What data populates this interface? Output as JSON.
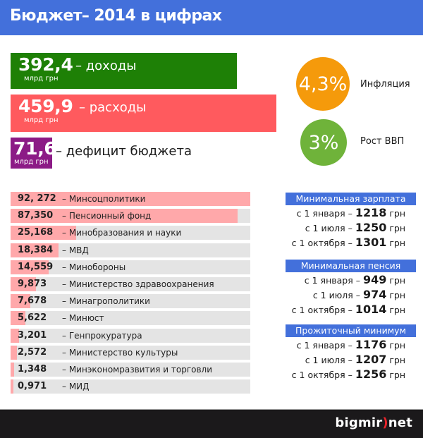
{
  "header": {
    "title": "Бюджет– 2014 в цифрах"
  },
  "summary": {
    "income": {
      "value": "392,4",
      "unit": "млрд грн",
      "label": "– доходы",
      "color": "#1e8006"
    },
    "expense": {
      "value": "459,9",
      "unit": "млрд грн",
      "label": "– расходы",
      "color": "#ff5a5e"
    },
    "deficit": {
      "value": "71,6",
      "unit": "млрд грн",
      "label": "– дефицит бюджета",
      "color": "#8c1b86"
    }
  },
  "indicators": {
    "inflation": {
      "value": "4,3%",
      "label": "Инфляция",
      "color": "#f59a0b"
    },
    "gdp": {
      "value": "3%",
      "label": "Рост ВВП",
      "color": "#6fb33a"
    }
  },
  "bars": {
    "items": [
      {
        "value": "92, 272",
        "label": "– Минсоцполитики"
      },
      {
        "value": "87,350",
        "label": "– Пенсионный фонд"
      },
      {
        "value": "25,168",
        "label": "– Минобразования и науки"
      },
      {
        "value": "18,384",
        "label": "– МВД"
      },
      {
        "value": "14,559",
        "label": "– Минобороны"
      },
      {
        "value": "9,873",
        "label": "– Министерство здравоохранения"
      },
      {
        "value": "7,678",
        "label": "– Минагрополитики"
      },
      {
        "value": "5,622",
        "label": "– Минюст"
      },
      {
        "value": "3,201",
        "label": "– Генпрокуратура"
      },
      {
        "value": "2,572",
        "label": "– Министерство культуры"
      },
      {
        "value": "1,348",
        "label": "– Минэкономразвития и торговли"
      },
      {
        "value": "0,971",
        "label": "– МИД"
      }
    ]
  },
  "panels": {
    "min_wage": {
      "title": "Минимальная зарплата",
      "lines": [
        {
          "prefix": "с 1 января – ",
          "amount": "1218",
          "suffix": " грн"
        },
        {
          "prefix": "с 1 июля – ",
          "amount": "1250",
          "suffix": " грн"
        },
        {
          "prefix": "с 1 октября – ",
          "amount": "1301",
          "suffix": " грн"
        }
      ]
    },
    "min_pension": {
      "title": "Минимальная пенсия",
      "lines": [
        {
          "prefix": "с 1 января – ",
          "amount": "949",
          "suffix": " грн"
        },
        {
          "prefix": "с 1 июля – ",
          "amount": "974",
          "suffix": " грн"
        },
        {
          "prefix": "с 1 октября – ",
          "amount": "1014",
          "suffix": " грн"
        }
      ]
    },
    "subsistence": {
      "title": "Прожиточный минимум",
      "lines": [
        {
          "prefix": "с 1 января – ",
          "amount": "1176",
          "suffix": " грн"
        },
        {
          "prefix": "с 1 июля – ",
          "amount": "1207",
          "suffix": " грн"
        },
        {
          "prefix": "с 1 октября – ",
          "amount": "1256",
          "suffix": " грн"
        }
      ]
    }
  },
  "footer": {
    "logo_left": "bigmir",
    "logo_bracket": ")",
    "logo_right": "net"
  },
  "chart_data": {
    "type": "bar",
    "title": "Бюджет– 2014 в цифрах",
    "xlabel": "",
    "ylabel": "млрд грн",
    "categories": [
      "Минсоцполитики",
      "Пенсионный фонд",
      "Минобразования и науки",
      "МВД",
      "Минобороны",
      "Министерство здравоохранения",
      "Минагрополитики",
      "Минюст",
      "Генпрокуратура",
      "Министерство культуры",
      "Минэкономразвития и торговли",
      "МИД"
    ],
    "values": [
      92.272,
      87.35,
      25.168,
      18.384,
      14.559,
      9.873,
      7.678,
      5.622,
      3.201,
      2.572,
      1.348,
      0.971
    ],
    "orientation": "horizontal",
    "xlim": [
      0,
      92.272
    ],
    "summary": {
      "income": 392.4,
      "expense": 459.9,
      "deficit": 71.6,
      "inflation_pct": 4.3,
      "gdp_growth_pct": 3
    },
    "colors": {
      "bar": "#ffa8aa",
      "track": "#e4e4e4"
    }
  }
}
